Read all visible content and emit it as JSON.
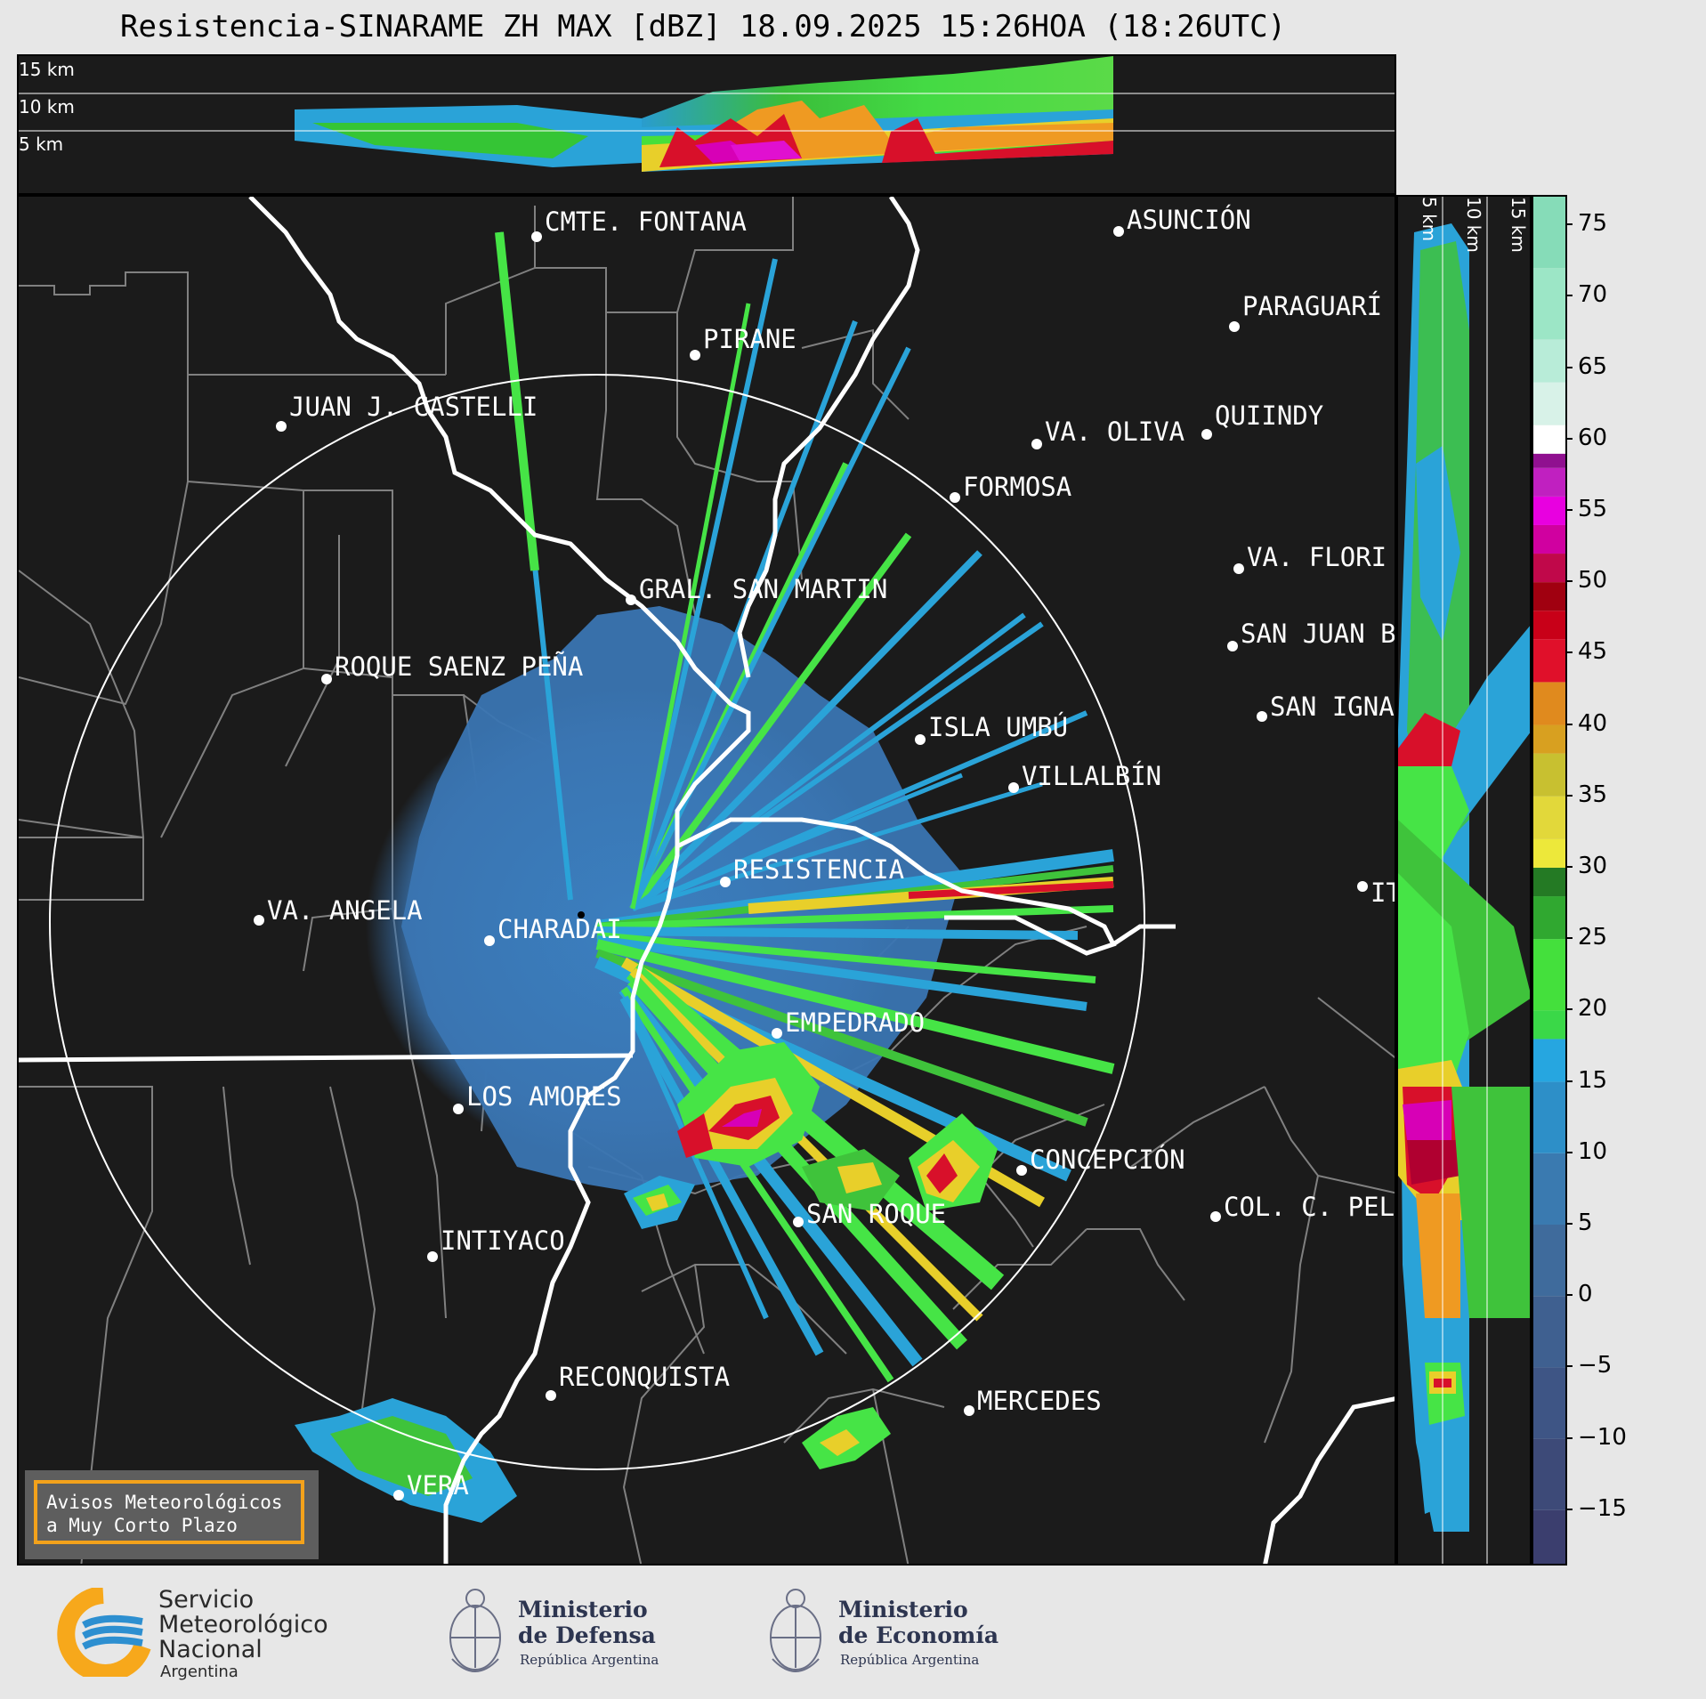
{
  "title": "Resistencia-SINARAME ZH MAX [dBZ] 18.09.2025 15:26HOA (18:26UTC)",
  "top_panel": {
    "height_labels": [
      "15 km",
      "10 km",
      "5 km"
    ]
  },
  "side_panel": {
    "height_labels": [
      "5 km",
      "10 km",
      "15 km"
    ]
  },
  "cities": [
    {
      "name": "CMTE. FONTANA"
    },
    {
      "name": "ASUNCIÓN"
    },
    {
      "name": "PARAGUARÍ"
    },
    {
      "name": "PIRANE"
    },
    {
      "name": "JUAN J. CASTELLI"
    },
    {
      "name": "VA. OLIVA"
    },
    {
      "name": "QUIINDY"
    },
    {
      "name": "FORMOSA"
    },
    {
      "name": "VA. FLORI"
    },
    {
      "name": "GRAL. SAN MARTIN"
    },
    {
      "name": "SAN JUAN B"
    },
    {
      "name": "ROQUE SAENZ PEÑA"
    },
    {
      "name": "SAN IGNA"
    },
    {
      "name": "ISLA UMBÚ"
    },
    {
      "name": "VILLALBÍN"
    },
    {
      "name": "RESISTENCIA"
    },
    {
      "name": "IT"
    },
    {
      "name": "VA. ANGELA"
    },
    {
      "name": "CHARADAI"
    },
    {
      "name": "EMPEDRADO"
    },
    {
      "name": "LOS AMORES"
    },
    {
      "name": "CONCEPCIÓN"
    },
    {
      "name": "SAN ROQUE"
    },
    {
      "name": "COL. C. PEL"
    },
    {
      "name": "INTIYACO"
    },
    {
      "name": "RECONQUISTA"
    },
    {
      "name": "MERCEDES"
    },
    {
      "name": "VERA"
    }
  ],
  "colorbar": {
    "unit": "dBZ",
    "min": -19,
    "max": 77,
    "ticks": [
      "75",
      "70",
      "65",
      "60",
      "55",
      "50",
      "45",
      "40",
      "35",
      "30",
      "25",
      "20",
      "15",
      "10",
      "5",
      "0",
      "−5",
      "−10",
      "−15"
    ],
    "tick_values": [
      75,
      70,
      65,
      60,
      55,
      50,
      45,
      40,
      35,
      30,
      25,
      20,
      15,
      10,
      5,
      0,
      -5,
      -10,
      -15
    ]
  },
  "notice": {
    "line1": "Avisos Meteorológicos",
    "line2": "a Muy Corto Plazo"
  },
  "logos": {
    "smn": {
      "line1": "Servicio",
      "line2": "Meteorológico",
      "line3": "Nacional",
      "line4": "Argentina"
    },
    "defensa": {
      "line1": "Ministerio",
      "line2": "de Defensa",
      "line3": "República Argentina"
    },
    "economia": {
      "line1": "Ministerio",
      "line2": "de Economía",
      "line3": "República Argentina"
    }
  },
  "colors": {
    "background": "#1b1b1b",
    "border": "#ffffff",
    "province_lines": "#808080",
    "accent_notice": "#f3a21b"
  }
}
